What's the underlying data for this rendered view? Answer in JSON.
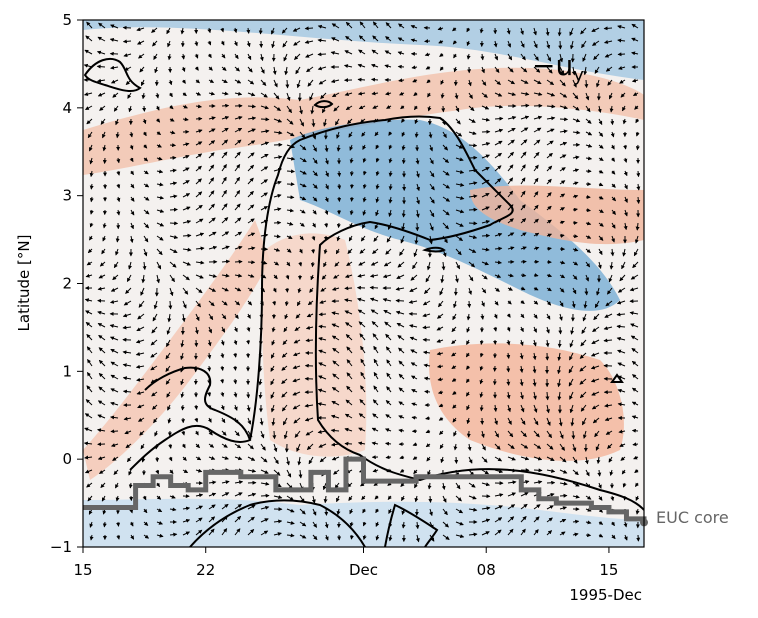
{
  "chart_data": {
    "type": "heatmap",
    "panel_label": "−u",
    "panel_label_sub": "y",
    "ylabel": "Latitude [°N]",
    "ylim": [
      -1,
      5
    ],
    "xlim": [
      "1995-11-15",
      "1995-12-17"
    ],
    "x_ticks": [
      {
        "date": "1995-11-15",
        "label": "15"
      },
      {
        "date": "1995-11-22",
        "label": "22"
      },
      {
        "date": "1995-12-01",
        "label": "Dec"
      },
      {
        "date": "1995-12-08",
        "label": "08"
      },
      {
        "date": "1995-12-15",
        "label": "15"
      }
    ],
    "x_offset_label": "1995-Dec",
    "y_ticks": [
      {
        "value": -1,
        "label": "−1"
      },
      {
        "value": 0,
        "label": "0"
      },
      {
        "value": 1,
        "label": "1"
      },
      {
        "value": 2,
        "label": "2"
      },
      {
        "value": 3,
        "label": "3"
      },
      {
        "value": 4,
        "label": "4"
      },
      {
        "value": 5,
        "label": "5"
      }
    ],
    "colormap": {
      "negative": "#2b7bba",
      "zero": "#f7f7f7",
      "positive": "#e0603f"
    },
    "euc_core": {
      "label": "EUC core",
      "color": "#666666",
      "x": [
        "1995-11-15",
        "1995-11-17",
        "1995-11-18",
        "1995-11-19",
        "1995-11-20",
        "1995-11-21",
        "1995-11-22",
        "1995-11-24",
        "1995-11-26",
        "1995-11-28",
        "1995-11-29",
        "1995-11-30",
        "1995-12-01",
        "1995-12-02",
        "1995-12-04",
        "1995-12-06",
        "1995-12-08",
        "1995-12-10",
        "1995-12-11",
        "1995-12-12",
        "1995-12-14",
        "1995-12-15",
        "1995-12-16",
        "1995-12-17"
      ],
      "y": [
        -0.55,
        -0.55,
        -0.3,
        -0.2,
        -0.3,
        -0.35,
        -0.15,
        -0.2,
        -0.35,
        -0.15,
        -0.35,
        0.0,
        -0.25,
        -0.25,
        -0.2,
        -0.2,
        -0.2,
        -0.35,
        -0.45,
        -0.5,
        -0.55,
        -0.6,
        -0.68,
        -0.72
      ]
    }
  }
}
